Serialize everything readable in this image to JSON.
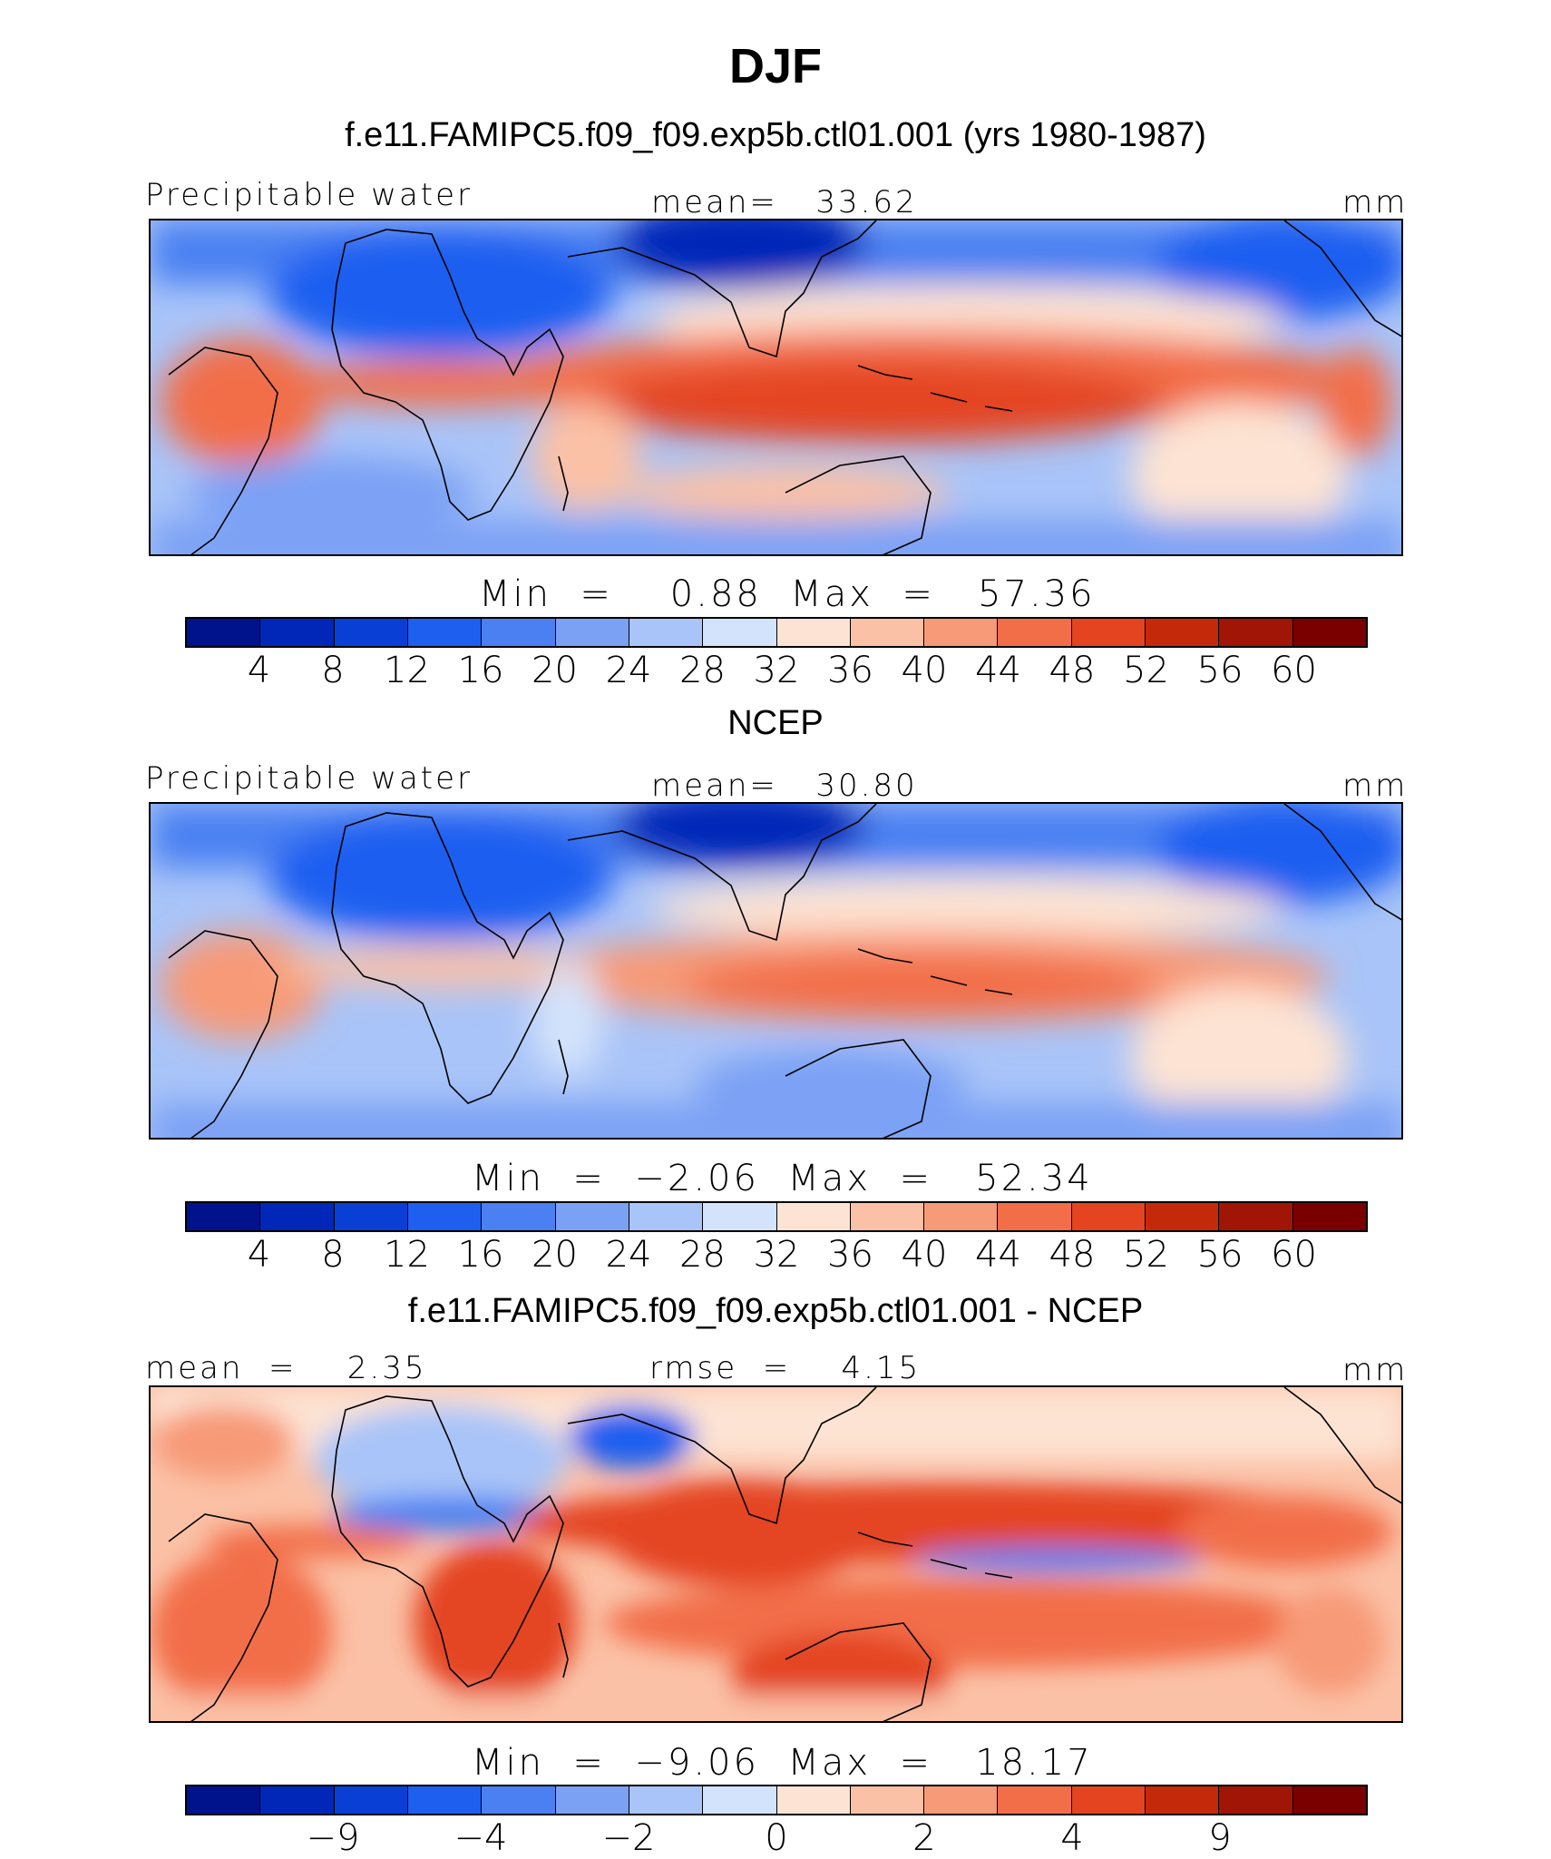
{
  "header": {
    "season": "DJF",
    "model_title": "f.e11.FAMIPC5.f09_f09.exp5b.ctl01.001 (yrs 1980-1987)"
  },
  "panels": [
    {
      "variable": "Precipitable water",
      "mean_text": "mean=   33.62",
      "units": "mm",
      "minmax_text": "Min  =    0.88  Max  =   57.36",
      "colorbar_ticks": [
        "4",
        "8",
        "12",
        "16",
        "20",
        "24",
        "28",
        "32",
        "36",
        "40",
        "44",
        "48",
        "52",
        "56",
        "60"
      ]
    },
    {
      "section_title": "NCEP",
      "variable": "Precipitable water",
      "mean_text": "mean=   30.80",
      "units": "mm",
      "minmax_text": "Min  =  −2.06  Max  =   52.34",
      "colorbar_ticks": [
        "4",
        "8",
        "12",
        "16",
        "20",
        "24",
        "28",
        "32",
        "36",
        "40",
        "44",
        "48",
        "52",
        "56",
        "60"
      ]
    },
    {
      "section_title": "f.e11.FAMIPC5.f09_f09.exp5b.ctl01.001 - NCEP",
      "mean_text": "mean  =    2.35",
      "rmse_text": "rmse  =    4.15",
      "units": "mm",
      "minmax_text": "Min  =  −9.06  Max  =   18.17",
      "colorbar_ticks": [
        "−9",
        "−4",
        "−2",
        "0",
        "2",
        "4",
        "9"
      ]
    }
  ],
  "colorbar_colors": [
    "#00128c",
    "#0027b8",
    "#0a3fd6",
    "#1f5ff0",
    "#4a80f2",
    "#7ba1f5",
    "#a9c4f8",
    "#d3e3fb",
    "#fde3d3",
    "#fbc1a6",
    "#f79a77",
    "#f26e48",
    "#e44420",
    "#c42a0a",
    "#a01505",
    "#7a0000"
  ]
}
